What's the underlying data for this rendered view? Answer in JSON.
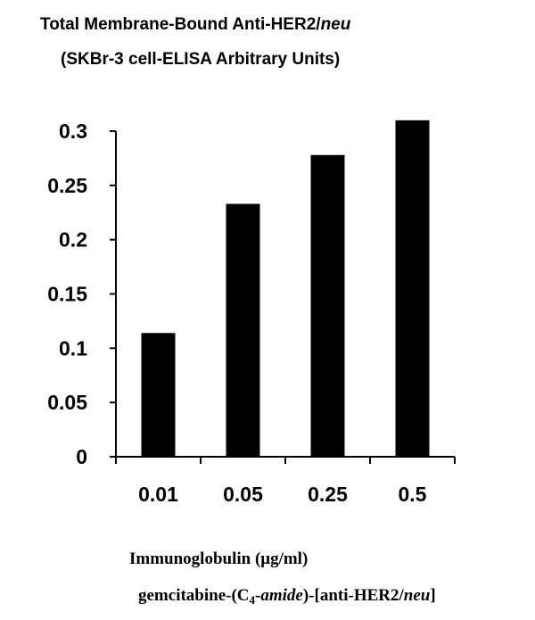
{
  "chart_data": {
    "type": "bar",
    "title": [
      "Total Membrane-Bound Anti-HER2/",
      "neu"
    ],
    "subtitle": "(SKBr-3 cell-ELISA Arbitrary Units)",
    "categories": [
      "0.01",
      "0.05",
      "0.25",
      "0.5"
    ],
    "values": [
      0.114,
      0.233,
      0.278,
      0.31
    ],
    "color": "#000000",
    "ylim": [
      0,
      0.3
    ],
    "yticks": [
      0,
      0.05,
      0.1,
      0.15,
      0.2,
      0.25,
      0.3
    ],
    "grid": false,
    "x_label": "Immunoglobulin (μg/ml)",
    "x_label_2": [
      "gemcitabine-(C",
      "4",
      "-",
      "amide",
      ")-[anti-HER2/",
      "neu",
      "]"
    ]
  }
}
